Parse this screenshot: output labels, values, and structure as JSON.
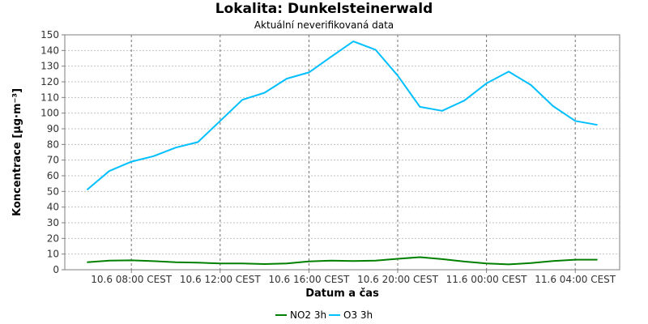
{
  "chart_data": {
    "type": "line",
    "title": "Lokalita: Dunkelsteinerwald",
    "subtitle": "Aktuální neverifikovaná data",
    "xlabel": "Datum a čas",
    "ylabel": "Koncentrace [µg·m⁻³]",
    "ylim": [
      0,
      150
    ],
    "yticks": [
      0,
      10,
      20,
      30,
      40,
      50,
      60,
      70,
      80,
      90,
      100,
      110,
      120,
      130,
      140,
      150
    ],
    "xlim": [
      "10.6 05:00",
      "11.6 06:00"
    ],
    "xticks": [
      {
        "at": "10.6 08:00",
        "label": "10.6 08:00 CEST"
      },
      {
        "at": "10.6 12:00",
        "label": "10.6 12:00 CEST"
      },
      {
        "at": "10.6 16:00",
        "label": "10.6 16:00 CEST"
      },
      {
        "at": "10.6 20:00",
        "label": "10.6 20:00 CEST"
      },
      {
        "at": "11.6 00:00",
        "label": "11.6 00:00 CEST"
      },
      {
        "at": "11.6 04:00",
        "label": "11.6 04:00 CEST"
      }
    ],
    "grid": true,
    "legend_position": "bottom",
    "x": [
      "10.6 06:00",
      "10.6 07:00",
      "10.6 08:00",
      "10.6 09:00",
      "10.6 10:00",
      "10.6 11:00",
      "10.6 12:00",
      "10.6 13:00",
      "10.6 14:00",
      "10.6 15:00",
      "10.6 16:00",
      "10.6 17:00",
      "10.6 18:00",
      "10.6 19:00",
      "10.6 20:00",
      "10.6 21:00",
      "10.6 22:00",
      "10.6 23:00",
      "11.6 00:00",
      "11.6 01:00",
      "11.6 02:00",
      "11.6 03:00",
      "11.6 04:00",
      "11.6 05:00"
    ],
    "series": [
      {
        "name": "NO2 3h",
        "color": "#008000",
        "values": [
          4.8,
          5.8,
          6.0,
          5.5,
          4.8,
          4.5,
          4.0,
          4.0,
          3.6,
          4.0,
          5.3,
          5.8,
          5.6,
          5.8,
          7.0,
          8.0,
          6.8,
          5.2,
          4.0,
          3.4,
          4.3,
          5.6,
          6.4,
          6.4
        ]
      },
      {
        "name": "O3 3h",
        "color": "#00bfff",
        "values": [
          51.0,
          63.0,
          69.0,
          72.5,
          78.0,
          81.5,
          95.0,
          108.5,
          113.0,
          122.0,
          126.0,
          136.0,
          145.8,
          140.5,
          124.0,
          104.0,
          101.5,
          108.0,
          119.0,
          126.5,
          118.0,
          104.5,
          95.0,
          92.5
        ]
      }
    ]
  }
}
